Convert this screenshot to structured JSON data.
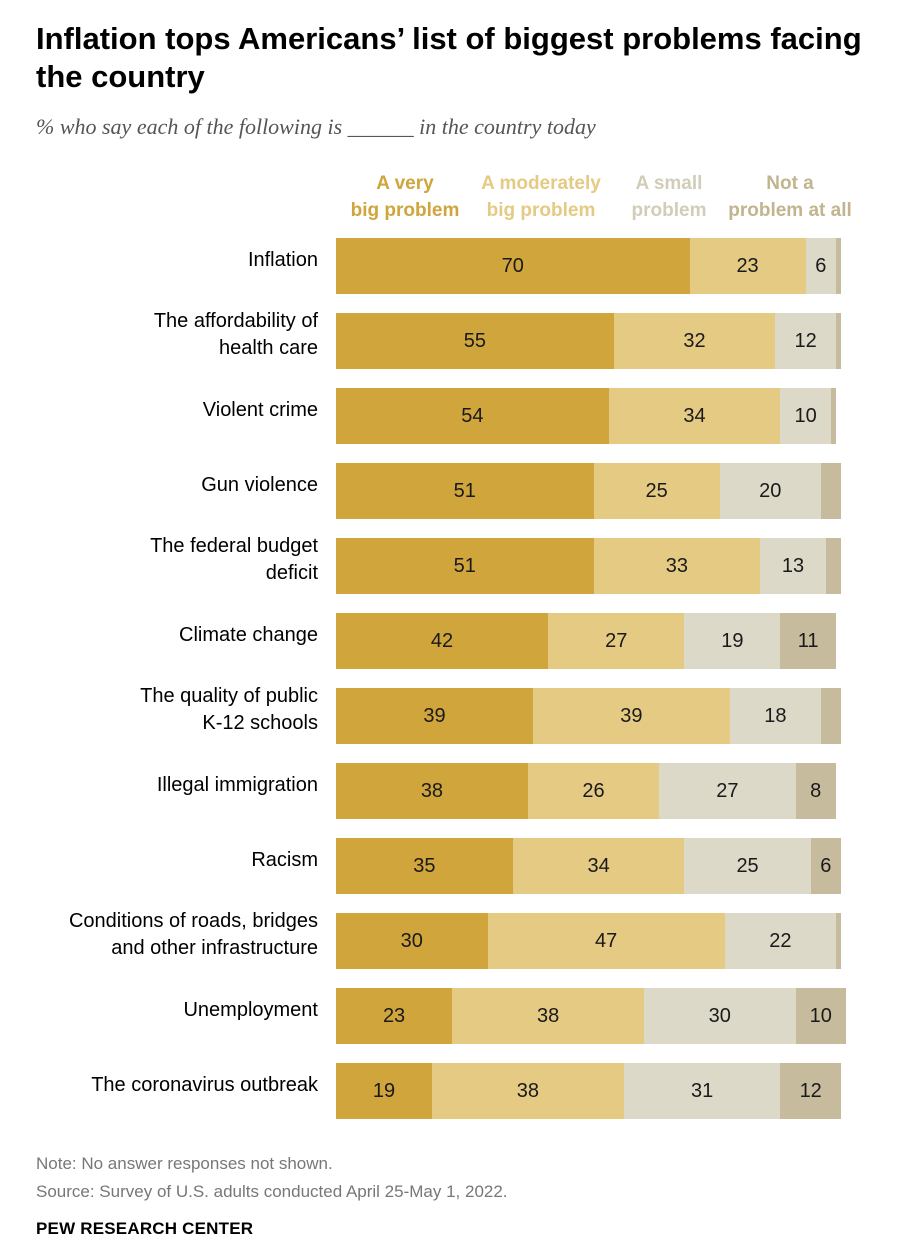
{
  "title": "Inflation tops Americans’ list of biggest problems facing the country",
  "subtitle": "% who say each of the following is ______ in the country today",
  "legend": [
    {
      "line1": "A very",
      "line2": "big problem",
      "color": "#cfa53c"
    },
    {
      "line1": "A moderately",
      "line2": "big problem",
      "color": "#e4ca83"
    },
    {
      "line1": "A small",
      "line2": "problem",
      "color": "#dcd9c9"
    },
    {
      "line1": "Not a",
      "line2": "problem at all",
      "color": "#c6bb9d"
    }
  ],
  "chart_data": {
    "type": "bar",
    "stacked": true,
    "orientation": "horizontal",
    "categories": [
      "Inflation",
      "The affordability of health care",
      "Violent crime",
      "Gun violence",
      "The federal budget deficit",
      "Climate change",
      "The quality of public K-12 schools",
      "Illegal immigration",
      "Racism",
      "Conditions of roads, bridges and other infrastructure",
      "Unemployment",
      "The coronavirus outbreak"
    ],
    "category_lines": [
      [
        "Inflation"
      ],
      [
        "The affordability of",
        "health care"
      ],
      [
        "Violent crime"
      ],
      [
        "Gun violence"
      ],
      [
        "The federal budget",
        "deficit"
      ],
      [
        "Climate change"
      ],
      [
        "The quality of public",
        "K-12 schools"
      ],
      [
        "Illegal immigration"
      ],
      [
        "Racism"
      ],
      [
        "Conditions of roads, bridges",
        "and other infrastructure"
      ],
      [
        "Unemployment"
      ],
      [
        "The coronavirus outbreak"
      ]
    ],
    "series": [
      {
        "name": "A very big problem",
        "values": [
          70,
          55,
          54,
          51,
          51,
          42,
          39,
          38,
          35,
          30,
          23,
          19
        ]
      },
      {
        "name": "A moderately big problem",
        "values": [
          23,
          32,
          34,
          25,
          33,
          27,
          39,
          26,
          34,
          47,
          38,
          38
        ]
      },
      {
        "name": "A small problem",
        "values": [
          6,
          12,
          10,
          20,
          13,
          19,
          18,
          27,
          25,
          22,
          30,
          31
        ]
      },
      {
        "name": "Not a problem at all",
        "values": [
          1,
          1,
          1,
          4,
          3,
          11,
          4,
          8,
          6,
          1,
          10,
          12
        ]
      }
    ],
    "value_labels_shown": [
      [
        true,
        true,
        true,
        false
      ],
      [
        true,
        true,
        true,
        false
      ],
      [
        true,
        true,
        true,
        false
      ],
      [
        true,
        true,
        true,
        false
      ],
      [
        true,
        true,
        true,
        false
      ],
      [
        true,
        true,
        true,
        true
      ],
      [
        true,
        true,
        true,
        false
      ],
      [
        true,
        true,
        true,
        true
      ],
      [
        true,
        true,
        true,
        true
      ],
      [
        true,
        true,
        true,
        false
      ],
      [
        true,
        true,
        true,
        true
      ],
      [
        true,
        true,
        true,
        true
      ]
    ],
    "xlim": [
      0,
      100
    ],
    "grid": false
  },
  "notes": {
    "note": "Note: No answer responses not shown.",
    "source": "Source: Survey of U.S. adults conducted April 25-May 1, 2022."
  },
  "org": "PEW RESEARCH CENTER"
}
